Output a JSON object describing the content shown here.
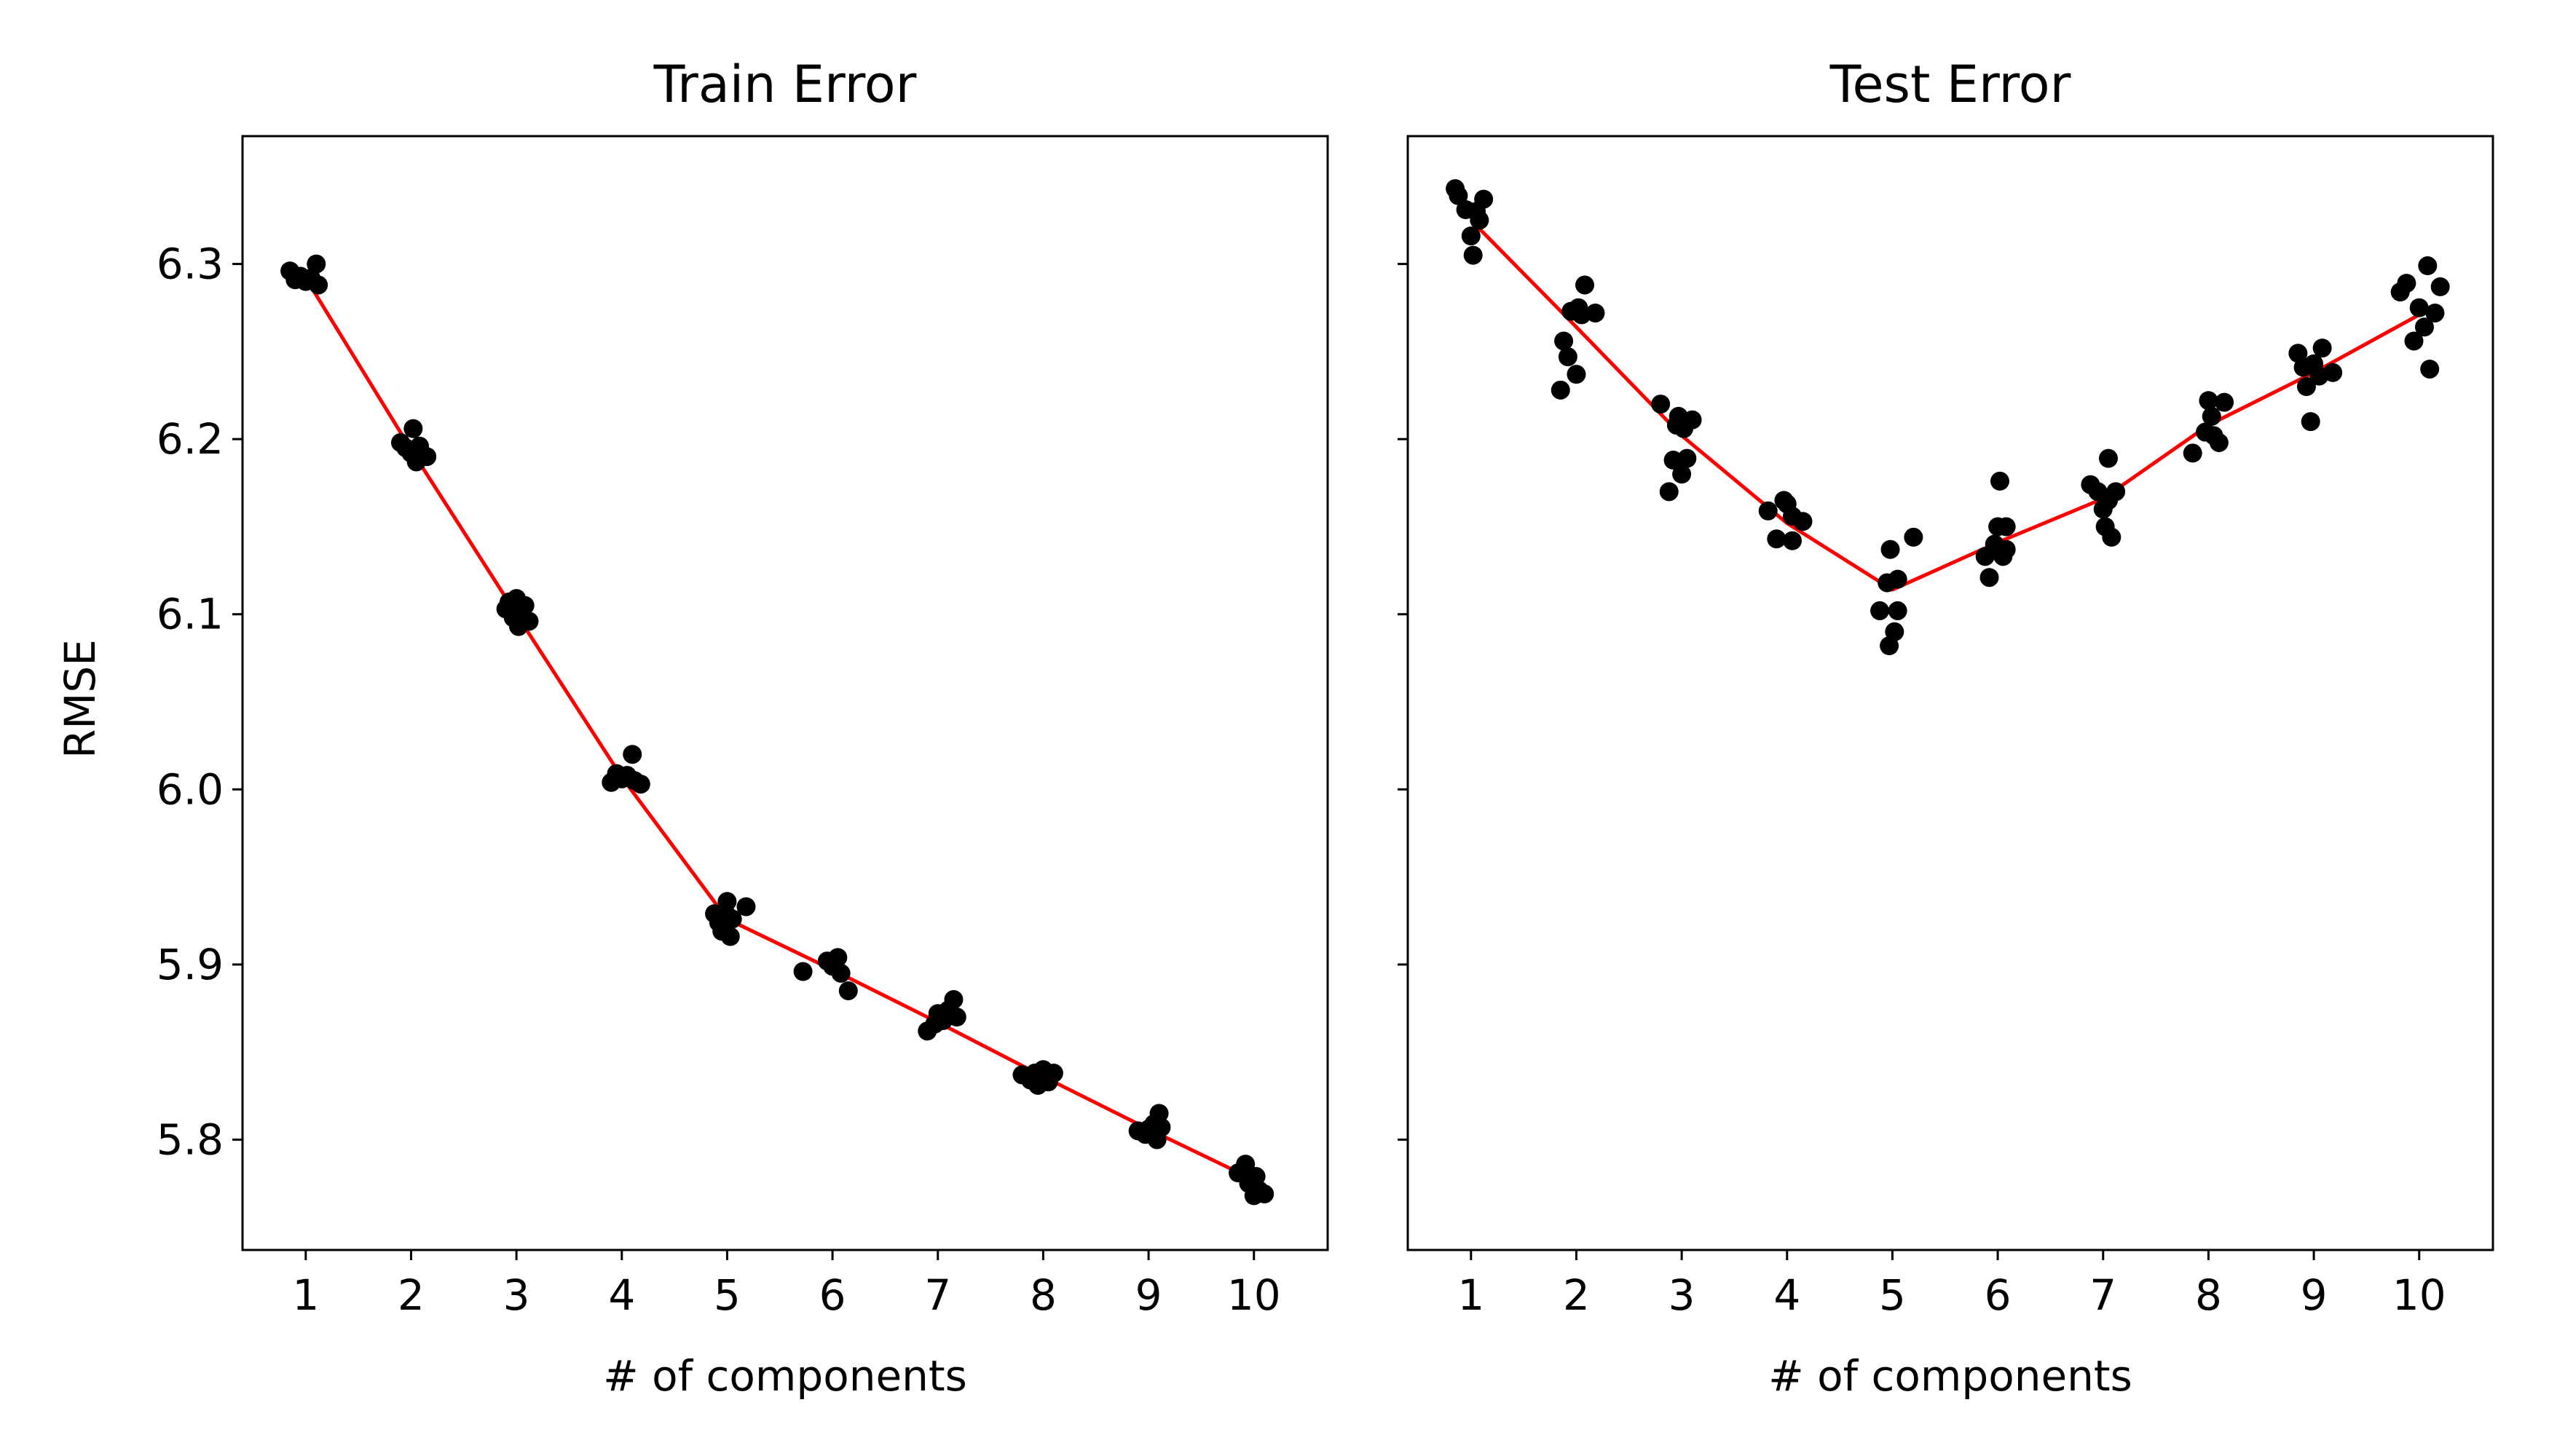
{
  "figure": {
    "background": "#ffffff"
  },
  "chart_data": [
    {
      "type": "scatter",
      "title": "Train Error",
      "xlabel": "# of components",
      "ylabel": "RMSE",
      "xlim": [
        0.4,
        10.7
      ],
      "ylim": [
        5.737,
        6.373
      ],
      "xticks": [
        1,
        2,
        3,
        4,
        5,
        6,
        7,
        8,
        9,
        10
      ],
      "yticks": [
        5.8,
        5.9,
        6.0,
        6.1,
        6.2,
        6.3
      ],
      "ytick_labels": [
        "5.8",
        "5.9",
        "6.0",
        "6.1",
        "6.2",
        "6.3"
      ],
      "show_yticklabels": true,
      "grid": false,
      "mean_line": {
        "color": "#ff0000",
        "x": [
          1,
          2,
          3,
          4,
          5,
          6,
          7,
          8,
          9,
          10
        ],
        "y": [
          6.292,
          6.194,
          6.1,
          6.007,
          5.926,
          5.897,
          5.867,
          5.836,
          5.806,
          5.777
        ]
      },
      "points": {
        "color": "#000000",
        "xy": [
          [
            0.85,
            6.296
          ],
          [
            0.9,
            6.291
          ],
          [
            0.95,
            6.293
          ],
          [
            1.0,
            6.29
          ],
          [
            1.05,
            6.292
          ],
          [
            1.1,
            6.3
          ],
          [
            1.12,
            6.288
          ],
          [
            1.9,
            6.198
          ],
          [
            1.95,
            6.195
          ],
          [
            2.0,
            6.192
          ],
          [
            2.02,
            6.206
          ],
          [
            2.05,
            6.187
          ],
          [
            2.08,
            6.196
          ],
          [
            2.15,
            6.19
          ],
          [
            2.9,
            6.103
          ],
          [
            2.93,
            6.107
          ],
          [
            2.97,
            6.098
          ],
          [
            3.0,
            6.109
          ],
          [
            3.02,
            6.093
          ],
          [
            3.05,
            6.1
          ],
          [
            3.08,
            6.105
          ],
          [
            3.12,
            6.096
          ],
          [
            3.9,
            6.004
          ],
          [
            3.95,
            6.009
          ],
          [
            4.0,
            6.006
          ],
          [
            4.05,
            6.008
          ],
          [
            4.1,
            6.02
          ],
          [
            4.12,
            6.005
          ],
          [
            4.18,
            6.003
          ],
          [
            4.88,
            5.929
          ],
          [
            4.92,
            5.924
          ],
          [
            4.95,
            5.919
          ],
          [
            5.0,
            5.936
          ],
          [
            5.0,
            5.928
          ],
          [
            5.03,
            5.916
          ],
          [
            5.05,
            5.926
          ],
          [
            5.18,
            5.933
          ],
          [
            5.72,
            5.896
          ],
          [
            5.95,
            5.902
          ],
          [
            6.0,
            5.899
          ],
          [
            6.05,
            5.904
          ],
          [
            6.08,
            5.895
          ],
          [
            6.15,
            5.885
          ],
          [
            6.9,
            5.862
          ],
          [
            6.97,
            5.866
          ],
          [
            7.0,
            5.872
          ],
          [
            7.05,
            5.868
          ],
          [
            7.1,
            5.874
          ],
          [
            7.15,
            5.88
          ],
          [
            7.18,
            5.87
          ],
          [
            7.8,
            5.837
          ],
          [
            7.88,
            5.834
          ],
          [
            7.92,
            5.838
          ],
          [
            7.95,
            5.831
          ],
          [
            8.0,
            5.84
          ],
          [
            8.03,
            5.836
          ],
          [
            8.05,
            5.833
          ],
          [
            8.1,
            5.838
          ],
          [
            8.9,
            5.805
          ],
          [
            8.97,
            5.803
          ],
          [
            9.0,
            5.806
          ],
          [
            9.05,
            5.809
          ],
          [
            9.08,
            5.8
          ],
          [
            9.1,
            5.815
          ],
          [
            9.12,
            5.807
          ],
          [
            9.85,
            5.781
          ],
          [
            9.92,
            5.786
          ],
          [
            9.95,
            5.775
          ],
          [
            10.0,
            5.768
          ],
          [
            10.02,
            5.779
          ],
          [
            10.05,
            5.771
          ],
          [
            10.1,
            5.769
          ]
        ]
      }
    },
    {
      "type": "scatter",
      "title": "Test Error",
      "xlabel": "# of components",
      "ylabel": "",
      "xlim": [
        0.4,
        10.7
      ],
      "ylim": [
        5.737,
        6.373
      ],
      "xticks": [
        1,
        2,
        3,
        4,
        5,
        6,
        7,
        8,
        9,
        10
      ],
      "yticks": [
        5.8,
        5.9,
        6.0,
        6.1,
        6.2,
        6.3
      ],
      "ytick_labels": [],
      "show_yticklabels": false,
      "grid": false,
      "mean_line": {
        "color": "#ff0000",
        "x": [
          1,
          2,
          3,
          4,
          5,
          6,
          7,
          8,
          9,
          10
        ],
        "y": [
          6.325,
          6.264,
          6.202,
          6.152,
          6.114,
          6.141,
          6.166,
          6.208,
          6.238,
          6.271
        ]
      },
      "points": {
        "color": "#000000",
        "xy": [
          [
            0.85,
            6.343
          ],
          [
            0.88,
            6.339
          ],
          [
            0.95,
            6.331
          ],
          [
            1.0,
            6.316
          ],
          [
            1.02,
            6.305
          ],
          [
            1.05,
            6.33
          ],
          [
            1.08,
            6.325
          ],
          [
            1.12,
            6.337
          ],
          [
            1.85,
            6.228
          ],
          [
            1.88,
            6.256
          ],
          [
            1.92,
            6.247
          ],
          [
            1.95,
            6.273
          ],
          [
            2.0,
            6.237
          ],
          [
            2.02,
            6.275
          ],
          [
            2.05,
            6.271
          ],
          [
            2.08,
            6.288
          ],
          [
            2.18,
            6.272
          ],
          [
            2.8,
            6.22
          ],
          [
            2.88,
            6.17
          ],
          [
            2.92,
            6.188
          ],
          [
            2.95,
            6.208
          ],
          [
            2.97,
            6.213
          ],
          [
            3.0,
            6.18
          ],
          [
            3.02,
            6.206
          ],
          [
            3.05,
            6.189
          ],
          [
            3.1,
            6.211
          ],
          [
            3.82,
            6.159
          ],
          [
            3.9,
            6.143
          ],
          [
            3.97,
            6.165
          ],
          [
            4.0,
            6.163
          ],
          [
            4.05,
            6.156
          ],
          [
            4.05,
            6.142
          ],
          [
            4.15,
            6.153
          ],
          [
            4.88,
            6.102
          ],
          [
            4.95,
            6.118
          ],
          [
            4.97,
            6.082
          ],
          [
            4.98,
            6.137
          ],
          [
            5.02,
            6.09
          ],
          [
            5.05,
            6.12
          ],
          [
            5.05,
            6.102
          ],
          [
            5.2,
            6.144
          ],
          [
            5.88,
            6.133
          ],
          [
            5.92,
            6.121
          ],
          [
            5.97,
            6.14
          ],
          [
            6.0,
            6.15
          ],
          [
            6.02,
            6.176
          ],
          [
            6.05,
            6.133
          ],
          [
            6.08,
            6.15
          ],
          [
            6.08,
            6.137
          ],
          [
            6.88,
            6.174
          ],
          [
            6.95,
            6.17
          ],
          [
            7.0,
            6.16
          ],
          [
            7.02,
            6.15
          ],
          [
            7.05,
            6.189
          ],
          [
            7.05,
            6.165
          ],
          [
            7.08,
            6.144
          ],
          [
            7.12,
            6.17
          ],
          [
            7.85,
            6.192
          ],
          [
            7.97,
            6.204
          ],
          [
            8.0,
            6.222
          ],
          [
            8.03,
            6.213
          ],
          [
            8.05,
            6.202
          ],
          [
            8.1,
            6.198
          ],
          [
            8.15,
            6.221
          ],
          [
            8.85,
            6.249
          ],
          [
            8.9,
            6.241
          ],
          [
            8.93,
            6.23
          ],
          [
            8.97,
            6.21
          ],
          [
            9.0,
            6.243
          ],
          [
            9.05,
            6.236
          ],
          [
            9.08,
            6.252
          ],
          [
            9.18,
            6.238
          ],
          [
            9.82,
            6.284
          ],
          [
            9.88,
            6.289
          ],
          [
            9.95,
            6.256
          ],
          [
            10.0,
            6.275
          ],
          [
            10.05,
            6.264
          ],
          [
            10.08,
            6.299
          ],
          [
            10.1,
            6.24
          ],
          [
            10.15,
            6.272
          ],
          [
            10.2,
            6.287
          ]
        ]
      }
    }
  ]
}
